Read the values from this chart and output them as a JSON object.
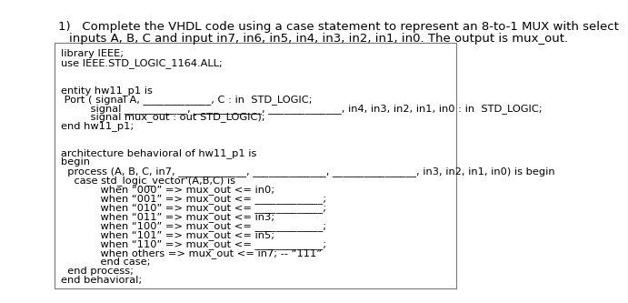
{
  "title_line1": "1)   Complete the VHDL code using a case statement to represent an 8-to-1 MUX with select",
  "title_line2": "inputs A, B, C and input in7, in6, in5, in4, in3, in2, in1, in0. The output is mux_out.",
  "bg_color": "#ffffff",
  "box_color": "#ffffff",
  "border_color": "#777777",
  "text_color": "#000000",
  "code_lines": [
    [
      "library IEEE;",
      0
    ],
    [
      "use IEEE.STD_LOGIC_1164.ALL;",
      0
    ],
    [
      "",
      0
    ],
    [
      "",
      0
    ],
    [
      "entity hw11_p1 is",
      0
    ],
    [
      " Port ( signal A, _____________, C : in  STD_LOGIC;",
      0
    ],
    [
      "         signal ____________, _____________, ______________, in4, in3, in2, in1, in0 : in  STD_LOGIC;",
      0
    ],
    [
      "         signal mux_out : out STD_LOGIC);",
      0
    ],
    [
      "end hw11_p1;",
      0
    ],
    [
      "",
      0
    ],
    [
      "",
      0
    ],
    [
      "architecture behavioral of hw11_p1 is",
      0
    ],
    [
      "begin",
      0
    ],
    [
      "  process (A, B, C, in7, _____________, ______________, ________________, in3, in2, in1, in0) is begin",
      0
    ],
    [
      "    case std_logic_vector'(A,B,C) is",
      0
    ],
    [
      "            when “000” => mux_out <= in0;",
      0
    ],
    [
      "            when “001” => mux_out <= _____________;",
      0
    ],
    [
      "            when “010” => mux_out <= _____________;",
      0
    ],
    [
      "            when “011” => mux_out <= in3;",
      0
    ],
    [
      "            when “100” => mux_out <= _____________;",
      0
    ],
    [
      "            when “101” => mux_out <= in5;",
      0
    ],
    [
      "            when “110” => mux_out <= _____________;",
      0
    ],
    [
      "            when others => mux_out <= in7; -- “111”",
      0
    ],
    [
      "            end case;",
      0
    ],
    [
      "  end process;",
      0
    ],
    [
      "end behavioral;",
      0
    ]
  ],
  "font_size_title": 9.5,
  "font_size_code": 8.2,
  "font_family": "DejaVu Sans"
}
